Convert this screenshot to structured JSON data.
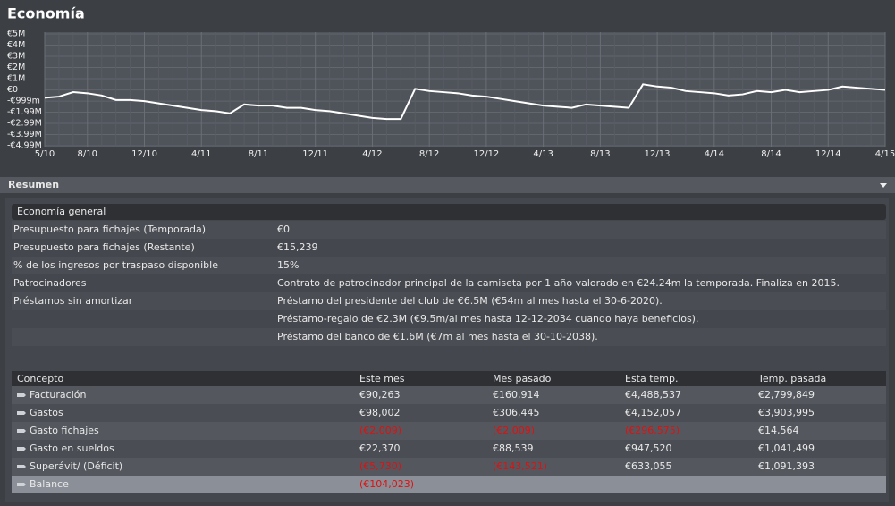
{
  "header": {
    "title": "Economía"
  },
  "chart_data": {
    "type": "line",
    "categories": [
      "5/10",
      null,
      null,
      "8/10",
      null,
      null,
      null,
      "12/10",
      null,
      null,
      null,
      "4/11",
      null,
      null,
      null,
      "8/11",
      null,
      null,
      null,
      "12/11",
      null,
      null,
      null,
      "4/12",
      null,
      null,
      null,
      "8/12",
      null,
      null,
      null,
      "12/12",
      null,
      null,
      null,
      "4/13",
      null,
      null,
      null,
      "8/13",
      null,
      null,
      null,
      "12/13",
      null,
      null,
      null,
      "4/14",
      null,
      null,
      null,
      "8/14",
      null,
      null,
      null,
      "12/14",
      null,
      null,
      null,
      "4/15"
    ],
    "series": [
      {
        "color": "#ffffff",
        "values": [
          -0.7,
          -0.6,
          -0.2,
          -0.3,
          -0.5,
          -0.9,
          -0.9,
          -1.0,
          -1.2,
          -1.4,
          -1.6,
          -1.8,
          -1.9,
          -2.1,
          -1.3,
          -1.4,
          -1.4,
          -1.6,
          -1.6,
          -1.8,
          -1.9,
          -2.1,
          -2.3,
          -2.5,
          -2.6,
          -2.6,
          0.1,
          -0.1,
          -0.2,
          -0.3,
          -0.5,
          -0.6,
          -0.8,
          -1.0,
          -1.2,
          -1.4,
          -1.5,
          -1.6,
          -1.3,
          -1.4,
          -1.5,
          -1.6,
          0.5,
          0.3,
          0.2,
          -0.1,
          -0.2,
          -0.3,
          -0.5,
          -0.4,
          -0.1,
          -0.2,
          0,
          -0.2,
          -0.1,
          0,
          0.3,
          0.2,
          0.1,
          0
        ]
      }
    ],
    "ylim": [
      -4.99,
      5
    ],
    "yticks": [
      {
        "value": 5,
        "label": "€5M"
      },
      {
        "value": 4,
        "label": "€4M"
      },
      {
        "value": 3,
        "label": "€3M"
      },
      {
        "value": 2,
        "label": "€2M"
      },
      {
        "value": 1,
        "label": "€1M"
      },
      {
        "value": 0,
        "label": "€0"
      },
      {
        "value": -0.999,
        "label": "-€999m"
      },
      {
        "value": -1.99,
        "label": "-€1.99M"
      },
      {
        "value": -2.99,
        "label": "-€2.99M"
      },
      {
        "value": -3.99,
        "label": "-€3.99M"
      },
      {
        "value": -4.99,
        "label": "-€4.99M"
      }
    ],
    "grid": true
  },
  "section": {
    "title": "Resumen"
  },
  "general": {
    "title": "Economía general",
    "rows": [
      {
        "label": "Presupuesto para fichajes (Temporada)",
        "values": [
          "€0"
        ]
      },
      {
        "label": "Presupuesto para fichajes (Restante)",
        "values": [
          "€15,239"
        ]
      },
      {
        "label": "% de los ingresos por traspaso disponible",
        "values": [
          "15%"
        ]
      },
      {
        "label": "Patrocinadores",
        "values": [
          "Contrato de patrocinador principal de la camiseta por 1 año valorado en €24.24m la temporada. Finaliza en 2015."
        ]
      },
      {
        "label": "Préstamos sin amortizar",
        "values": [
          "Préstamo del presidente del club de €6.5M (€54m al mes hasta el 30-6-2020).",
          "Préstamo-regalo de €2.3M (€9.5m/al mes hasta 12-12-2034 cuando haya beneficios).",
          "Préstamo del banco de €1.6M (€7m al mes hasta el 30-10-2038)."
        ]
      }
    ]
  },
  "table": {
    "columns": [
      "Concepto",
      "Este mes",
      "Mes pasado",
      "Esta temp.",
      "Temp. pasada"
    ],
    "rows": [
      {
        "label": "Facturación",
        "values": [
          "€90,263",
          "€160,914",
          "€4,488,537",
          "€2,799,849"
        ]
      },
      {
        "label": "Gastos",
        "values": [
          "€98,002",
          "€306,445",
          "€4,152,057",
          "€3,903,995"
        ]
      },
      {
        "label": "Gasto fichajes",
        "values": [
          "(€2,009)",
          "(€2,009)",
          "(€296,575)",
          "€14,564"
        ]
      },
      {
        "label": "Gasto en sueldos",
        "values": [
          "€22,370",
          "€88,539",
          "€947,520",
          "€1,041,499"
        ]
      },
      {
        "label": "Superávit/ (Déficit)",
        "values": [
          "(€5,730)",
          "(€143,521)",
          "€633,055",
          "€1,091,393"
        ]
      },
      {
        "label": "Balance",
        "values": [
          "(€104,023)"
        ]
      }
    ]
  }
}
